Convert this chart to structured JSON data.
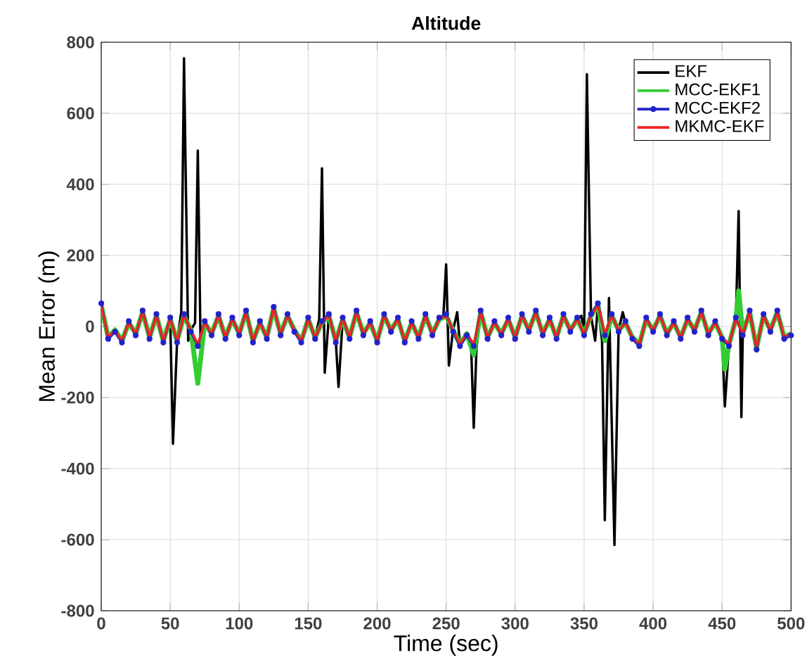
{
  "chart_data": {
    "type": "line",
    "title": "Altitude",
    "xlabel": "Time (sec)",
    "ylabel": "Mean Error (m)",
    "xlim": [
      0,
      500
    ],
    "ylim": [
      -800,
      800
    ],
    "xticks": [
      0,
      50,
      100,
      150,
      200,
      250,
      300,
      350,
      400,
      450,
      500
    ],
    "yticks": [
      -800,
      -600,
      -400,
      -200,
      0,
      200,
      400,
      600,
      800
    ],
    "grid": true,
    "legend": "top right",
    "line_style": "solid",
    "x": [
      0,
      5,
      10,
      15,
      20,
      25,
      30,
      35,
      40,
      45,
      50,
      55,
      60,
      65,
      70,
      75,
      80,
      85,
      90,
      95,
      100,
      105,
      110,
      115,
      120,
      125,
      130,
      135,
      140,
      145,
      150,
      155,
      160,
      165,
      170,
      175,
      180,
      185,
      190,
      195,
      200,
      205,
      210,
      215,
      220,
      225,
      230,
      235,
      240,
      245,
      250,
      255,
      260,
      265,
      270,
      275,
      280,
      285,
      290,
      295,
      300,
      305,
      310,
      315,
      320,
      325,
      330,
      335,
      340,
      345,
      350,
      355,
      360,
      365,
      370,
      375,
      380,
      385,
      390,
      395,
      400,
      405,
      410,
      415,
      420,
      425,
      430,
      435,
      440,
      445,
      450,
      455,
      460,
      465,
      470,
      475,
      480,
      485,
      490,
      495,
      500
    ],
    "series": [
      {
        "name": "EKF",
        "color": "#000000",
        "x": [
          0,
          5,
          10,
          15,
          20,
          25,
          30,
          35,
          40,
          45,
          50,
          52,
          55,
          58,
          60,
          63,
          65,
          68,
          70,
          72,
          75,
          80,
          85,
          90,
          95,
          100,
          105,
          110,
          115,
          120,
          125,
          130,
          135,
          140,
          145,
          150,
          155,
          158,
          160,
          162,
          165,
          170,
          172,
          175,
          180,
          185,
          190,
          195,
          200,
          205,
          210,
          215,
          220,
          225,
          230,
          235,
          240,
          245,
          248,
          250,
          252,
          255,
          258,
          260,
          265,
          268,
          270,
          272,
          275,
          280,
          285,
          290,
          295,
          300,
          305,
          310,
          315,
          320,
          325,
          330,
          335,
          340,
          345,
          348,
          350,
          352,
          355,
          358,
          360,
          363,
          365,
          368,
          372,
          375,
          378,
          380,
          385,
          390,
          395,
          400,
          405,
          410,
          415,
          420,
          425,
          430,
          435,
          440,
          445,
          450,
          452,
          455,
          460,
          462,
          464,
          465,
          470,
          475,
          480,
          485,
          490,
          495,
          500
        ],
        "values": [
          60,
          -30,
          -10,
          -40,
          10,
          -20,
          40,
          -30,
          30,
          -40,
          20,
          -330,
          -40,
          40,
          755,
          -40,
          -10,
          10,
          495,
          -50,
          10,
          -20,
          30,
          -30,
          20,
          -20,
          40,
          -40,
          10,
          -30,
          50,
          -20,
          30,
          -10,
          -40,
          20,
          -30,
          20,
          445,
          -130,
          30,
          -40,
          -170,
          20,
          -30,
          40,
          -20,
          10,
          -40,
          30,
          -10,
          20,
          -40,
          10,
          -30,
          30,
          -20,
          20,
          30,
          175,
          -110,
          -10,
          40,
          -50,
          -20,
          -40,
          -285,
          -60,
          40,
          -30,
          10,
          -20,
          20,
          -30,
          30,
          -10,
          40,
          -20,
          20,
          -30,
          30,
          -10,
          20,
          30,
          -20,
          710,
          30,
          -40,
          60,
          -40,
          -545,
          80,
          -615,
          -10,
          40,
          10,
          -30,
          -50,
          20,
          -10,
          30,
          -20,
          10,
          -30,
          20,
          -10,
          40,
          -20,
          10,
          -30,
          -225,
          -50,
          20,
          325,
          -255,
          -20,
          40,
          -60,
          30,
          -10,
          40,
          -30,
          -20
        ]
      },
      {
        "name": "MCC-EKF1",
        "color": "#33cc33",
        "x": [
          0,
          5,
          10,
          15,
          20,
          25,
          30,
          35,
          40,
          45,
          50,
          55,
          60,
          65,
          70,
          75,
          80,
          85,
          90,
          95,
          100,
          105,
          110,
          115,
          120,
          125,
          130,
          135,
          140,
          145,
          150,
          155,
          160,
          165,
          170,
          175,
          180,
          185,
          190,
          195,
          200,
          205,
          210,
          215,
          220,
          225,
          230,
          235,
          240,
          245,
          250,
          255,
          260,
          265,
          270,
          275,
          280,
          285,
          290,
          295,
          300,
          305,
          310,
          315,
          320,
          325,
          330,
          335,
          340,
          345,
          350,
          355,
          360,
          365,
          370,
          375,
          380,
          385,
          390,
          395,
          400,
          405,
          410,
          415,
          420,
          425,
          430,
          435,
          440,
          445,
          450,
          452,
          455,
          460,
          462,
          465,
          470,
          475,
          480,
          485,
          490,
          495,
          500
        ],
        "values": [
          60,
          -30,
          -10,
          -40,
          10,
          -20,
          40,
          -30,
          30,
          -40,
          20,
          -40,
          30,
          -10,
          -160,
          10,
          -20,
          30,
          -30,
          20,
          -20,
          40,
          -40,
          10,
          -30,
          50,
          -20,
          30,
          -10,
          -40,
          20,
          -30,
          10,
          30,
          -40,
          20,
          -30,
          40,
          -20,
          10,
          -40,
          30,
          -10,
          20,
          -40,
          10,
          -30,
          30,
          -20,
          20,
          30,
          -10,
          -50,
          -20,
          -80,
          40,
          -30,
          10,
          -20,
          20,
          -30,
          30,
          -10,
          40,
          -20,
          20,
          -30,
          30,
          -10,
          20,
          -20,
          30,
          60,
          -40,
          30,
          -10,
          10,
          -30,
          -50,
          20,
          -10,
          30,
          -20,
          10,
          -30,
          20,
          -10,
          40,
          -20,
          10,
          -30,
          -120,
          -50,
          20,
          100,
          -20,
          40,
          -60,
          30,
          -10,
          40,
          -30,
          -20
        ]
      },
      {
        "name": "MCC-EKF2",
        "color": "#2222cc",
        "marker": "circle",
        "values": [
          65,
          -35,
          -15,
          -45,
          15,
          -25,
          45,
          -35,
          35,
          -45,
          25,
          -45,
          35,
          -15,
          -55,
          15,
          -25,
          35,
          -35,
          25,
          -25,
          45,
          -45,
          15,
          -35,
          55,
          -25,
          35,
          -15,
          -45,
          25,
          -35,
          15,
          35,
          -45,
          25,
          -35,
          45,
          -25,
          15,
          -45,
          35,
          -15,
          25,
          -45,
          15,
          -35,
          35,
          -25,
          25,
          35,
          -15,
          -55,
          -25,
          -55,
          45,
          -35,
          15,
          -25,
          25,
          -35,
          35,
          -15,
          45,
          -25,
          25,
          -35,
          35,
          -15,
          25,
          -25,
          35,
          65,
          -25,
          35,
          -15,
          15,
          -35,
          -55,
          25,
          -15,
          35,
          -25,
          15,
          -35,
          25,
          -15,
          45,
          -25,
          15,
          -35,
          -55,
          25,
          -25,
          45,
          -65,
          35,
          -15,
          45,
          -35,
          -25
        ]
      },
      {
        "name": "MKMC-EKF",
        "color": "#ee2222",
        "values": [
          60,
          -30,
          -10,
          -40,
          10,
          -20,
          40,
          -30,
          30,
          -40,
          20,
          -40,
          30,
          -10,
          -50,
          10,
          -20,
          30,
          -30,
          20,
          -20,
          40,
          -40,
          10,
          -30,
          50,
          -20,
          30,
          -10,
          -40,
          20,
          -30,
          10,
          30,
          -40,
          20,
          -30,
          40,
          -20,
          10,
          -40,
          30,
          -10,
          20,
          -40,
          10,
          -30,
          30,
          -20,
          20,
          30,
          -10,
          -50,
          -20,
          -50,
          40,
          -30,
          10,
          -20,
          20,
          -30,
          30,
          -10,
          40,
          -20,
          20,
          -30,
          30,
          -10,
          20,
          -20,
          30,
          60,
          -20,
          30,
          -10,
          10,
          -30,
          -50,
          20,
          -10,
          30,
          -20,
          10,
          -30,
          20,
          -10,
          40,
          -20,
          10,
          -30,
          -50,
          20,
          -20,
          40,
          -60,
          30,
          -10,
          40,
          -30,
          -20
        ]
      }
    ]
  }
}
